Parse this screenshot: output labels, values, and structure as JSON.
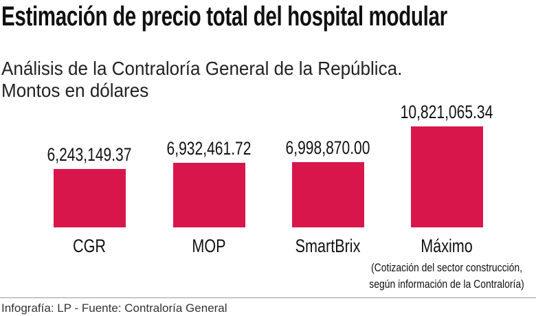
{
  "title": "Estimación de precio total del hospital modular",
  "subtitle_line1": "Análisis de la Contraloría General de la República.",
  "subtitle_line2": "Montos en dólares",
  "footer": "Infografía: LP - Fuente: Contraloría General",
  "chart_data": {
    "type": "bar",
    "title": "Estimación de precio total del hospital modular",
    "subtitle": "Análisis de la Contraloría General de la República. Montos en dólares",
    "categories": [
      "CGR",
      "MOP",
      "SmartBrix",
      "Máximo"
    ],
    "values": [
      6243149.37,
      6932461.72,
      6998870.0,
      10821065.34
    ],
    "value_labels": [
      "6,243,149.37",
      "6,932,461.72",
      "6,998,870.00",
      "10,821,065.34"
    ],
    "annotations": [
      "(Cotización del sector construcción,",
      "según información de la Contraloría)"
    ],
    "xlabel": "",
    "ylabel": "",
    "ylim": [
      0,
      10821065.34
    ],
    "grid": false,
    "bar_color": "#d9164b"
  }
}
